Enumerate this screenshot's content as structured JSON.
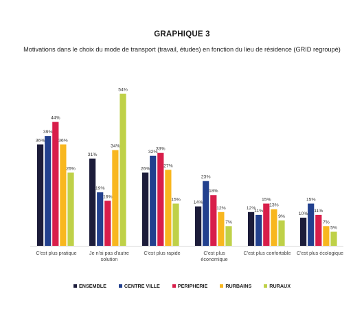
{
  "header": {
    "title": "GRAPHIQUE 3",
    "subtitle": "Motivations dans le choix du mode de transport (travail, études) en fonction du lieu de résidence (GRID regroupé)"
  },
  "chart_data": {
    "type": "bar",
    "title": "GRAPHIQUE 3",
    "subtitle": "Motivations dans le choix du mode de transport (travail, études) en fonction du lieu de résidence (GRID regroupé)",
    "categories": [
      [
        "C'est plus pratique"
      ],
      [
        "Je n'ai pas d'autre",
        "solution"
      ],
      [
        "C'est plus rapide"
      ],
      [
        "C'est plus",
        "économique"
      ],
      [
        "C'est plus confortable"
      ],
      [
        "C'est plus écologique"
      ]
    ],
    "series": [
      {
        "name": "ENSEMBLE",
        "color": "#1c1c3a",
        "values": [
          36,
          31,
          26,
          14,
          12,
          10
        ]
      },
      {
        "name": "CENTRE VILLE",
        "color": "#22408e",
        "values": [
          39,
          19,
          32,
          23,
          11,
          15
        ]
      },
      {
        "name": "PERIPHERIE",
        "color": "#d81e4a",
        "values": [
          44,
          16,
          33,
          18,
          15,
          11
        ]
      },
      {
        "name": "RURBAINS",
        "color": "#f8b71f",
        "values": [
          36,
          34,
          27,
          12,
          13,
          7
        ]
      },
      {
        "name": "RURAUX",
        "color": "#bfd148",
        "values": [
          26,
          54,
          15,
          7,
          9,
          5
        ]
      }
    ],
    "value_suffix": "%",
    "ylim": [
      0,
      60
    ],
    "grid": false,
    "legend_position": "bottom"
  }
}
